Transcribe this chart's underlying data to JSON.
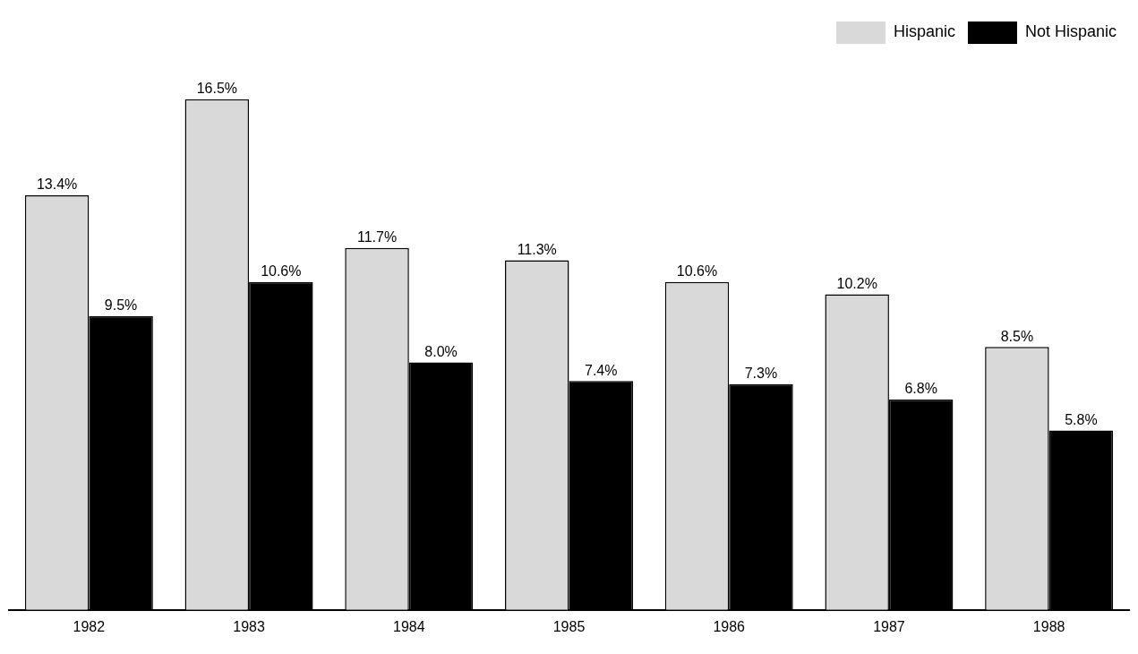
{
  "chart_data": {
    "type": "bar",
    "categories": [
      "1982",
      "1983",
      "1984",
      "1985",
      "1986",
      "1987",
      "1988"
    ],
    "series": [
      {
        "name": "Hispanic",
        "color": "#d9d9d9",
        "values": [
          13.4,
          16.5,
          11.7,
          11.3,
          10.6,
          10.2,
          8.5
        ],
        "value_labels": [
          "13.4%",
          "16.5%",
          "11.7%",
          "11.3%",
          "10.6%",
          "10.2%",
          "8.5%"
        ]
      },
      {
        "name": "Not Hispanic",
        "color": "#000000",
        "values": [
          9.5,
          10.6,
          8.0,
          7.4,
          7.3,
          6.8,
          5.8
        ],
        "value_labels": [
          "9.5%",
          "10.6%",
          "8.0%",
          "7.4%",
          "7.3%",
          "6.8%",
          "5.8%"
        ]
      }
    ],
    "legend": "top right"
  }
}
